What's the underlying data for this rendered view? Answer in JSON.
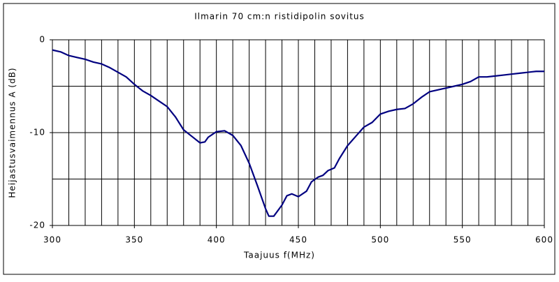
{
  "chart_data": {
    "type": "line",
    "title": "Ilmarin 70 cm:n ristidipolin sovitus",
    "x_label": "Taajuus f(MHz)",
    "y_label": "Heijastusvaimennus A (dB)",
    "x": [
      300,
      305,
      310,
      315,
      320,
      325,
      330,
      335,
      340,
      345,
      350,
      355,
      360,
      365,
      370,
      375,
      380,
      385,
      390,
      393,
      395,
      400,
      405,
      410,
      415,
      420,
      425,
      430,
      432,
      435,
      440,
      443,
      446,
      450,
      455,
      458,
      462,
      465,
      468,
      472,
      475,
      480,
      485,
      490,
      495,
      500,
      505,
      510,
      515,
      520,
      525,
      530,
      535,
      540,
      545,
      550,
      555,
      560,
      565,
      570,
      575,
      580,
      585,
      590,
      595,
      600
    ],
    "series": [
      {
        "color": "#000080",
        "values": [
          -1.1,
          -1.3,
          -1.7,
          -1.9,
          -2.1,
          -2.4,
          -2.6,
          -3.0,
          -3.5,
          -4.0,
          -4.8,
          -5.5,
          -6.0,
          -6.6,
          -7.2,
          -8.3,
          -9.7,
          -10.4,
          -11.1,
          -11.0,
          -10.5,
          -9.9,
          -9.8,
          -10.3,
          -11.4,
          -13.3,
          -15.7,
          -18.2,
          -19.0,
          -19.0,
          -17.8,
          -16.8,
          -16.6,
          -16.9,
          -16.3,
          -15.3,
          -14.8,
          -14.6,
          -14.1,
          -13.8,
          -12.8,
          -11.4,
          -10.4,
          -9.4,
          -8.9,
          -8.0,
          -7.7,
          -7.5,
          -7.4,
          -6.9,
          -6.2,
          -5.6,
          -5.4,
          -5.2,
          -5.0,
          -4.8,
          -4.5,
          -4.0,
          -4.0,
          -3.9,
          -3.8,
          -3.7,
          -3.6,
          -3.5,
          -3.4,
          -3.4
        ]
      }
    ],
    "xlim": [
      300,
      600
    ],
    "xticks": [
      300,
      350,
      400,
      450,
      500,
      550,
      600
    ],
    "ylim": [
      -20,
      0
    ],
    "yticks": [
      -20,
      -10,
      0
    ],
    "x_grid_step": 10,
    "y_grid_step": 5,
    "grid": true
  }
}
